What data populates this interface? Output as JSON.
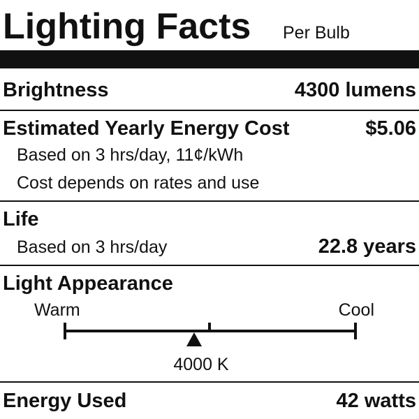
{
  "header": {
    "title": "Lighting Facts",
    "subtitle": "Per Bulb"
  },
  "brightness": {
    "label": "Brightness",
    "value": "4300 lumens"
  },
  "cost": {
    "label": "Estimated Yearly Energy Cost",
    "value": "$5.06",
    "notes": [
      "Based on 3 hrs/day, 11¢/kWh",
      "Cost depends on rates and use"
    ]
  },
  "life": {
    "label": "Life",
    "note": "Based on 3 hrs/day",
    "value": "22.8 years"
  },
  "appearance": {
    "label": "Light Appearance",
    "warm": "Warm",
    "cool": "Cool",
    "value": "4000 K"
  },
  "energy": {
    "label": "Energy Used",
    "value": "42 watts"
  }
}
